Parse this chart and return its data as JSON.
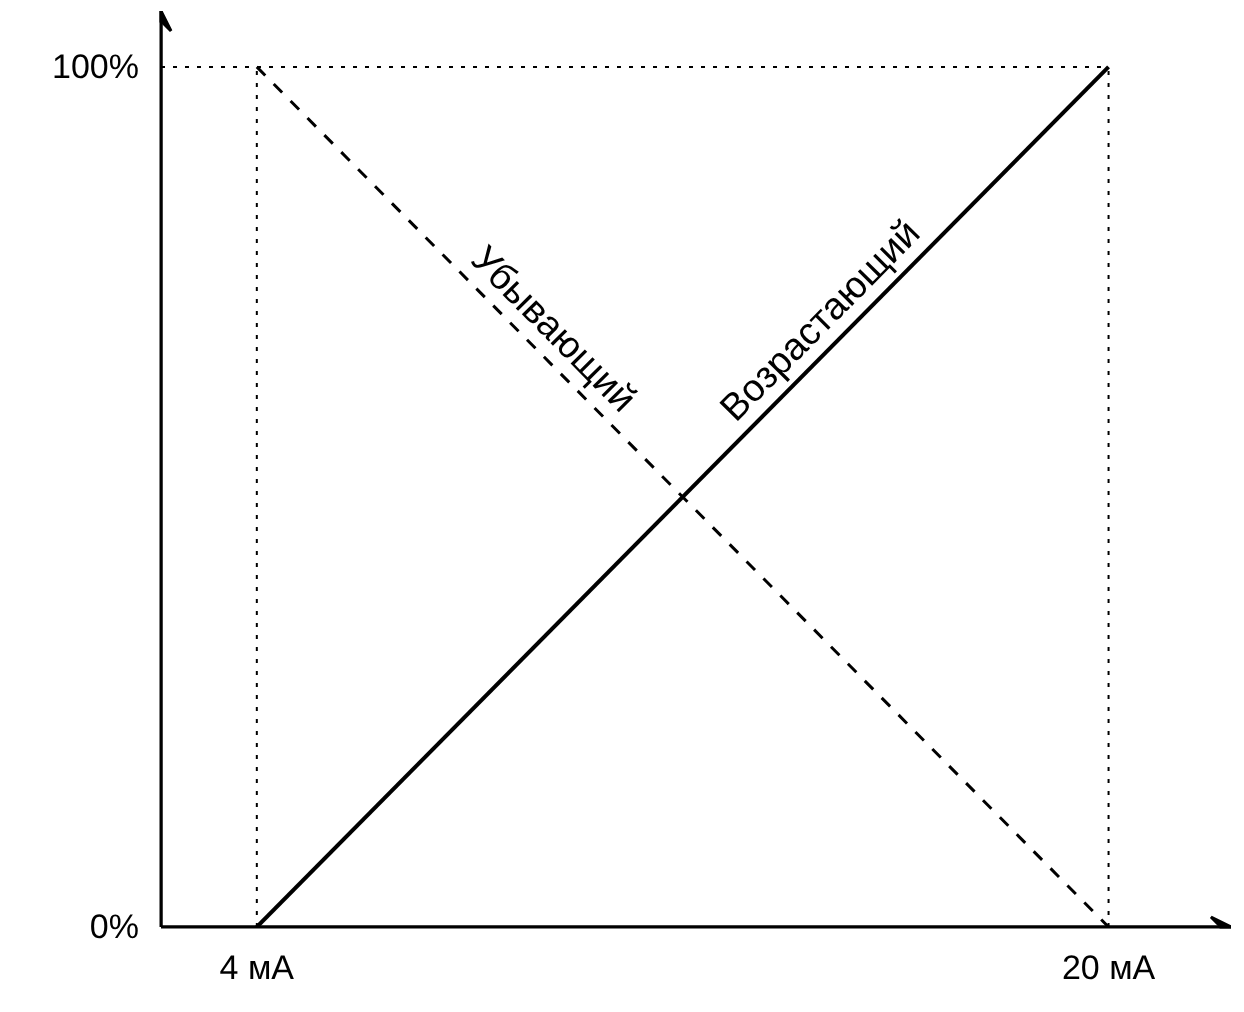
{
  "chart_data": {
    "type": "line",
    "x": [
      4,
      20
    ],
    "series": [
      {
        "name": "Возрастающий",
        "color": "#000000",
        "values": [
          0,
          100
        ],
        "line_style": "solid"
      },
      {
        "name": "Убывающий",
        "color": "#000000",
        "values": [
          100,
          0
        ],
        "line_style": "dashed"
      }
    ],
    "xlim": [
      2.2,
      22.3
    ],
    "ylim": [
      0,
      106.5
    ],
    "xticks": [
      {
        "value": 4,
        "label": "4 мА"
      },
      {
        "value": 20,
        "label": "20 мА"
      }
    ],
    "yticks": [
      {
        "value": 0,
        "label": "0%"
      },
      {
        "value": 100,
        "label": "100%"
      }
    ],
    "ref_lines": [
      {
        "axis": "x",
        "value": 4,
        "color": "#000000",
        "line_style": "dotted"
      },
      {
        "axis": "x",
        "value": 20,
        "color": "#000000",
        "line_style": "dotted"
      },
      {
        "axis": "y",
        "value": 100,
        "color": "#000000",
        "line_style": "dotted"
      }
    ],
    "grid": false,
    "marker": "none"
  }
}
